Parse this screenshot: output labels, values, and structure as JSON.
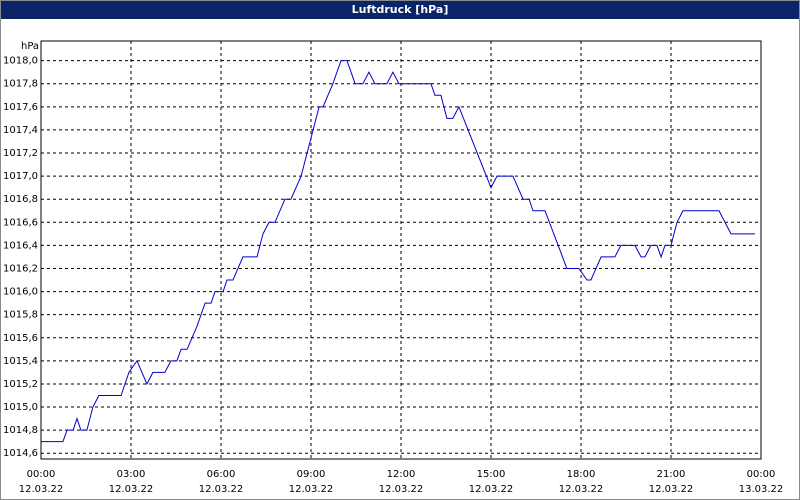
{
  "chart_data": {
    "type": "line",
    "title": "Luftdruck [hPa]",
    "y_label": "hPa",
    "xlim": [
      0,
      24
    ],
    "ylim": [
      1014.55,
      1018.17
    ],
    "grid": true,
    "xticks": [
      {
        "value": 0,
        "label": "00:00\n12.03.22"
      },
      {
        "value": 3,
        "label": "03:00\n12.03.22"
      },
      {
        "value": 6,
        "label": "06:00\n12.03.22"
      },
      {
        "value": 9,
        "label": "09:00\n12.03.22"
      },
      {
        "value": 12,
        "label": "12:00\n12.03.22"
      },
      {
        "value": 15,
        "label": "15:00\n12.03.22"
      },
      {
        "value": 18,
        "label": "18:00\n12.03.22"
      },
      {
        "value": 21,
        "label": "21:00\n12.03.22"
      },
      {
        "value": 24,
        "label": "00:00\n13.03.22"
      }
    ],
    "yticks": [
      {
        "value": 1014.6,
        "label": "1014,6"
      },
      {
        "value": 1014.8,
        "label": "1014,8"
      },
      {
        "value": 1015.0,
        "label": "1015,0"
      },
      {
        "value": 1015.2,
        "label": "1015,2"
      },
      {
        "value": 1015.4,
        "label": "1015,4"
      },
      {
        "value": 1015.6,
        "label": "1015,6"
      },
      {
        "value": 1015.8,
        "label": "1015,8"
      },
      {
        "value": 1016.0,
        "label": "1016,0"
      },
      {
        "value": 1016.2,
        "label": "1016,2"
      },
      {
        "value": 1016.4,
        "label": "1016,4"
      },
      {
        "value": 1016.6,
        "label": "1016,6"
      },
      {
        "value": 1016.8,
        "label": "1016,8"
      },
      {
        "value": 1017.0,
        "label": "1017,0"
      },
      {
        "value": 1017.2,
        "label": "1017,2"
      },
      {
        "value": 1017.4,
        "label": "1017,4"
      },
      {
        "value": 1017.6,
        "label": "1017,6"
      },
      {
        "value": 1017.8,
        "label": "1017,8"
      },
      {
        "value": 1018.0,
        "label": "1018,0"
      }
    ],
    "x": [
      0,
      0.73,
      0.87,
      1.07,
      1.2,
      1.33,
      1.53,
      1.73,
      1.93,
      2.67,
      2.93,
      3.2,
      3.53,
      3.73,
      4.13,
      4.33,
      4.53,
      4.67,
      4.87,
      5.2,
      5.47,
      5.67,
      5.8,
      6.07,
      6.2,
      6.4,
      6.73,
      7.2,
      7.4,
      7.6,
      7.8,
      8.13,
      8.33,
      8.67,
      8.87,
      9.07,
      9.27,
      9.4,
      9.73,
      10,
      10.2,
      10.47,
      10.73,
      10.93,
      11.13,
      11.53,
      11.73,
      11.93,
      13,
      13.13,
      13.33,
      13.53,
      13.73,
      13.93,
      15,
      15.2,
      15.73,
      16.07,
      16.27,
      16.4,
      16.8,
      17.53,
      17.93,
      18.2,
      18.33,
      18.67,
      19.13,
      19.33,
      19.8,
      20,
      20.13,
      20.33,
      20.53,
      20.67,
      20.8,
      21,
      21.2,
      21.4,
      22.6,
      23,
      23.8
    ],
    "series": [
      {
        "color": "#0000cc",
        "values": [
          1014.7,
          1014.7,
          1014.8,
          1014.8,
          1014.9,
          1014.8,
          1014.8,
          1015.0,
          1015.1,
          1015.1,
          1015.3,
          1015.4,
          1015.2,
          1015.3,
          1015.3,
          1015.4,
          1015.4,
          1015.5,
          1015.5,
          1015.7,
          1015.9,
          1015.9,
          1016.0,
          1016.0,
          1016.1,
          1016.1,
          1016.3,
          1016.3,
          1016.5,
          1016.6,
          1016.6,
          1016.8,
          1016.8,
          1017.0,
          1017.2,
          1017.4,
          1017.6,
          1017.6,
          1017.8,
          1018.0,
          1018.0,
          1017.8,
          1017.8,
          1017.9,
          1017.8,
          1017.8,
          1017.9,
          1017.8,
          1017.8,
          1017.7,
          1017.7,
          1017.5,
          1017.5,
          1017.6,
          1016.9,
          1017.0,
          1017.0,
          1016.8,
          1016.8,
          1016.7,
          1016.7,
          1016.2,
          1016.2,
          1016.1,
          1016.1,
          1016.3,
          1016.3,
          1016.4,
          1016.4,
          1016.3,
          1016.3,
          1016.4,
          1016.4,
          1016.3,
          1016.4,
          1016.4,
          1016.6,
          1016.7,
          1016.7,
          1016.5,
          1016.5
        ]
      }
    ]
  }
}
